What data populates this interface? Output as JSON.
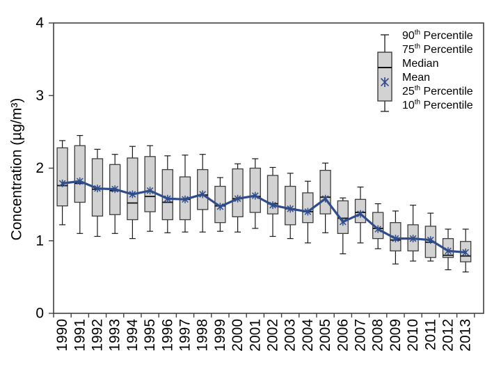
{
  "chart_data": {
    "type": "boxplot",
    "title": "",
    "ylabel": "Concentration (µg/m³)",
    "xlabel": "",
    "ylim": [
      0,
      4
    ],
    "yticks": [
      0,
      1,
      2,
      3,
      4
    ],
    "grid": false,
    "categories": [
      "1990",
      "1991",
      "1992",
      "1993",
      "1994",
      "1995",
      "1996",
      "1997",
      "1998",
      "1999",
      "2000",
      "2001",
      "2002",
      "2003",
      "2004",
      "2005",
      "2006",
      "2007",
      "2008",
      "2009",
      "2010",
      "2011",
      "2012",
      "2013"
    ],
    "series": [
      {
        "name": "90th Percentile",
        "values": [
          2.38,
          2.45,
          2.26,
          2.19,
          2.3,
          2.31,
          2.17,
          2.18,
          2.19,
          1.87,
          2.06,
          2.13,
          2.01,
          1.93,
          1.82,
          2.07,
          1.59,
          1.74,
          1.51,
          1.41,
          1.49,
          1.38,
          1.16,
          1.16
        ]
      },
      {
        "name": "75th Percentile",
        "values": [
          2.28,
          2.31,
          2.13,
          2.05,
          2.14,
          2.16,
          1.98,
          1.88,
          1.98,
          1.75,
          1.99,
          2.0,
          1.9,
          1.75,
          1.66,
          1.97,
          1.55,
          1.57,
          1.39,
          1.25,
          1.22,
          1.2,
          1.03,
          0.99
        ]
      },
      {
        "name": "Median",
        "values": [
          1.76,
          1.79,
          1.71,
          1.69,
          1.52,
          1.61,
          1.53,
          1.57,
          1.63,
          1.48,
          1.58,
          1.61,
          1.51,
          1.44,
          1.4,
          1.6,
          1.31,
          1.39,
          1.17,
          1.01,
          1.03,
          0.98,
          0.8,
          0.79
        ]
      },
      {
        "name": "Mean",
        "values": [
          1.79,
          1.82,
          1.72,
          1.71,
          1.64,
          1.69,
          1.58,
          1.57,
          1.64,
          1.47,
          1.58,
          1.62,
          1.49,
          1.44,
          1.4,
          1.58,
          1.26,
          1.37,
          1.16,
          1.03,
          1.03,
          1.01,
          0.86,
          0.84
        ]
      },
      {
        "name": "25th Percentile",
        "values": [
          1.48,
          1.53,
          1.34,
          1.36,
          1.29,
          1.4,
          1.29,
          1.29,
          1.43,
          1.25,
          1.33,
          1.39,
          1.37,
          1.22,
          1.25,
          1.37,
          1.1,
          1.25,
          1.03,
          0.86,
          0.86,
          0.77,
          0.77,
          0.71
        ]
      },
      {
        "name": "10th Percentile",
        "values": [
          1.22,
          1.1,
          1.06,
          1.1,
          1.03,
          1.13,
          1.11,
          1.12,
          1.12,
          1.13,
          1.12,
          1.17,
          1.06,
          1.03,
          0.97,
          1.11,
          0.82,
          0.97,
          0.89,
          0.68,
          0.72,
          0.72,
          0.6,
          0.57
        ]
      }
    ],
    "legend": {
      "position": "top-right",
      "entries": [
        "90th Percentile",
        "75th Percentile",
        "Median",
        "Mean",
        "25th Percentile",
        "10th Percentile"
      ]
    },
    "colors": {
      "background": "#ffffff",
      "box_fill": "#d2d2d2",
      "box_stroke": "#3c3c3c",
      "whisker": "#1a1a1a",
      "median": "#111111",
      "mean_line": "#2f4d8c",
      "frame": "#404040",
      "text": "#000000"
    }
  }
}
